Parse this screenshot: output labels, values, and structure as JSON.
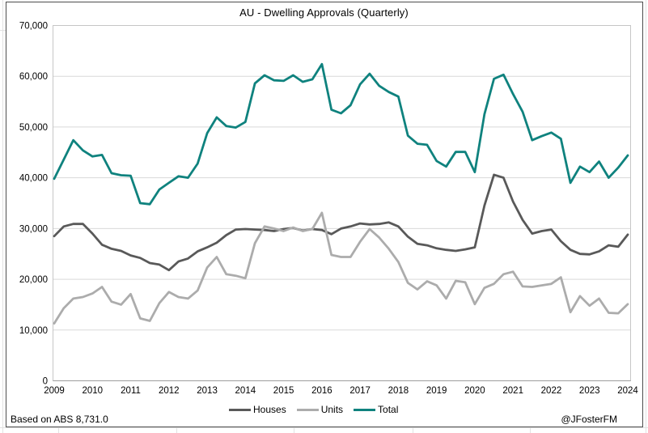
{
  "chart": {
    "title": "AU - Dwelling Approvals (Quarterly)",
    "source_note": "Based on ABS 8,731.0",
    "credit": "@JFosterFM"
  },
  "colors": {
    "houses": "#595959",
    "units": "#ACACAC",
    "total": "#0F827E",
    "gridline": "#D9D9D9",
    "plot_border": "#C6C6C6",
    "axis_line": "#9E9E9E",
    "text": "#000000"
  },
  "chart_data": {
    "type": "line",
    "title": "AU - Dwelling Approvals (Quarterly)",
    "x_unit": "quarter",
    "grid": "horizontal",
    "legend_position": "bottom",
    "ylim": [
      0,
      70000
    ],
    "y_tick_step": 10000,
    "y_tick_labels": [
      "0",
      "10,000",
      "20,000",
      "30,000",
      "40,000",
      "50,000",
      "60,000",
      "70,000"
    ],
    "x_tick_labels": [
      "2009",
      "2010",
      "2011",
      "2012",
      "2013",
      "2014",
      "2015",
      "2016",
      "2017",
      "2018",
      "2019",
      "2020",
      "2021",
      "2022",
      "2023",
      "2024"
    ],
    "categories": [
      "2009Q1",
      "2009Q2",
      "2009Q3",
      "2009Q4",
      "2010Q1",
      "2010Q2",
      "2010Q3",
      "2010Q4",
      "2011Q1",
      "2011Q2",
      "2011Q3",
      "2011Q4",
      "2012Q1",
      "2012Q2",
      "2012Q3",
      "2012Q4",
      "2013Q1",
      "2013Q2",
      "2013Q3",
      "2013Q4",
      "2014Q1",
      "2014Q2",
      "2014Q3",
      "2014Q4",
      "2015Q1",
      "2015Q2",
      "2015Q3",
      "2015Q4",
      "2016Q1",
      "2016Q2",
      "2016Q3",
      "2016Q4",
      "2017Q1",
      "2017Q2",
      "2017Q3",
      "2017Q4",
      "2018Q1",
      "2018Q2",
      "2018Q3",
      "2018Q4",
      "2019Q1",
      "2019Q2",
      "2019Q3",
      "2019Q4",
      "2020Q1",
      "2020Q2",
      "2020Q3",
      "2020Q4",
      "2021Q1",
      "2021Q2",
      "2021Q3",
      "2021Q4",
      "2022Q1",
      "2022Q2",
      "2022Q3",
      "2022Q4",
      "2023Q1",
      "2023Q2",
      "2023Q3",
      "2023Q4",
      "2024Q1"
    ],
    "series": [
      {
        "name": "Houses",
        "color": "#595959",
        "values": [
          28500,
          30400,
          30900,
          30900,
          29000,
          26800,
          26000,
          25600,
          24700,
          24200,
          23200,
          22900,
          21800,
          23500,
          24100,
          25500,
          26300,
          27200,
          28700,
          29800,
          29900,
          29800,
          29700,
          29500,
          29900,
          30100,
          29600,
          29900,
          29700,
          28900,
          30000,
          30400,
          31000,
          30800,
          30900,
          31200,
          30400,
          28400,
          27000,
          26700,
          26100,
          25800,
          25600,
          25900,
          26300,
          34500,
          40600,
          40000,
          35300,
          31700,
          29000,
          29500,
          29800,
          27500,
          25800,
          25000,
          24900,
          25500,
          26700,
          26400,
          28800
        ]
      },
      {
        "name": "Units",
        "color": "#ACACAC",
        "values": [
          11300,
          14300,
          16200,
          16500,
          17200,
          18500,
          15600,
          15000,
          17100,
          12300,
          11800,
          15300,
          17500,
          16500,
          16200,
          17800,
          22300,
          24400,
          21000,
          20700,
          20200,
          27100,
          30400,
          30000,
          29500,
          30200,
          29500,
          29900,
          33100,
          24800,
          24400,
          24400,
          27400,
          29900,
          28200,
          26000,
          23400,
          19300,
          18000,
          19600,
          18800,
          16200,
          19700,
          19400,
          15100,
          18300,
          19100,
          21000,
          21500,
          18600,
          18500,
          18800,
          19100,
          20400,
          13500,
          16700,
          14800,
          16200,
          13400,
          13300,
          15100
        ]
      },
      {
        "name": "Total",
        "color": "#0F827E",
        "values": [
          39800,
          43600,
          47400,
          45400,
          44200,
          44500,
          40900,
          40500,
          40400,
          35000,
          34800,
          37700,
          39000,
          40300,
          40000,
          42800,
          48800,
          51900,
          50200,
          49900,
          51000,
          58600,
          60200,
          59200,
          59100,
          60200,
          58900,
          59400,
          62400,
          53400,
          52700,
          54300,
          58400,
          60500,
          58100,
          56900,
          56000,
          48300,
          46700,
          46500,
          43300,
          42200,
          45100,
          45100,
          41100,
          52500,
          59500,
          60300,
          56500,
          53000,
          47400,
          48200,
          48900,
          47700,
          39000,
          42200,
          41100,
          43200,
          40000,
          42000,
          44400
        ]
      }
    ]
  }
}
